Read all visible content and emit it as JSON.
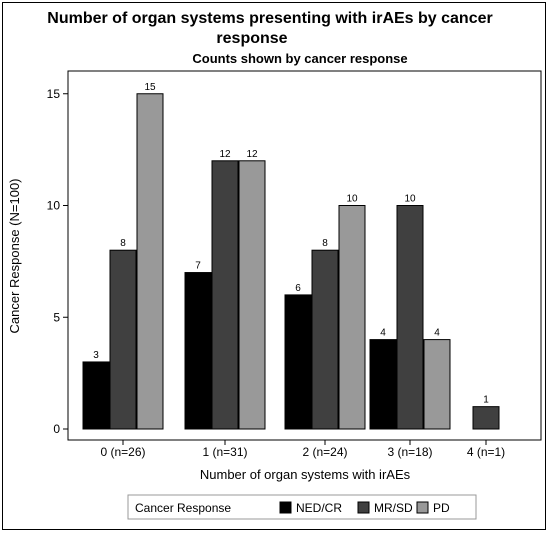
{
  "chart_data": {
    "type": "bar",
    "title_line1": "Number of organ systems presenting with irAEs by cancer",
    "title_line2": "response",
    "subtitle": "Counts shown by cancer response",
    "xlabel": "Number of organ systems with irAEs",
    "ylabel": "Cancer Response (N=100)",
    "ylim": [
      0,
      16
    ],
    "yticks": [
      "0",
      "5",
      "10",
      "15"
    ],
    "ytick_values": [
      0,
      5,
      10,
      15
    ],
    "categories": [
      "0 (n=26)",
      "1 (n=31)",
      "2 (n=24)",
      "3 (n=18)",
      "4 (n=1)"
    ],
    "series": [
      {
        "name": "NED/CR",
        "color": "#000000",
        "values": [
          3,
          7,
          6,
          4,
          null
        ]
      },
      {
        "name": "MR/SD",
        "color": "#404040",
        "values": [
          8,
          12,
          8,
          10,
          1
        ]
      },
      {
        "name": "PD",
        "color": "#999999",
        "values": [
          15,
          12,
          10,
          4,
          null
        ]
      }
    ],
    "legend": {
      "title": "Cancer Response",
      "placement": "bottom"
    },
    "grid": false
  }
}
